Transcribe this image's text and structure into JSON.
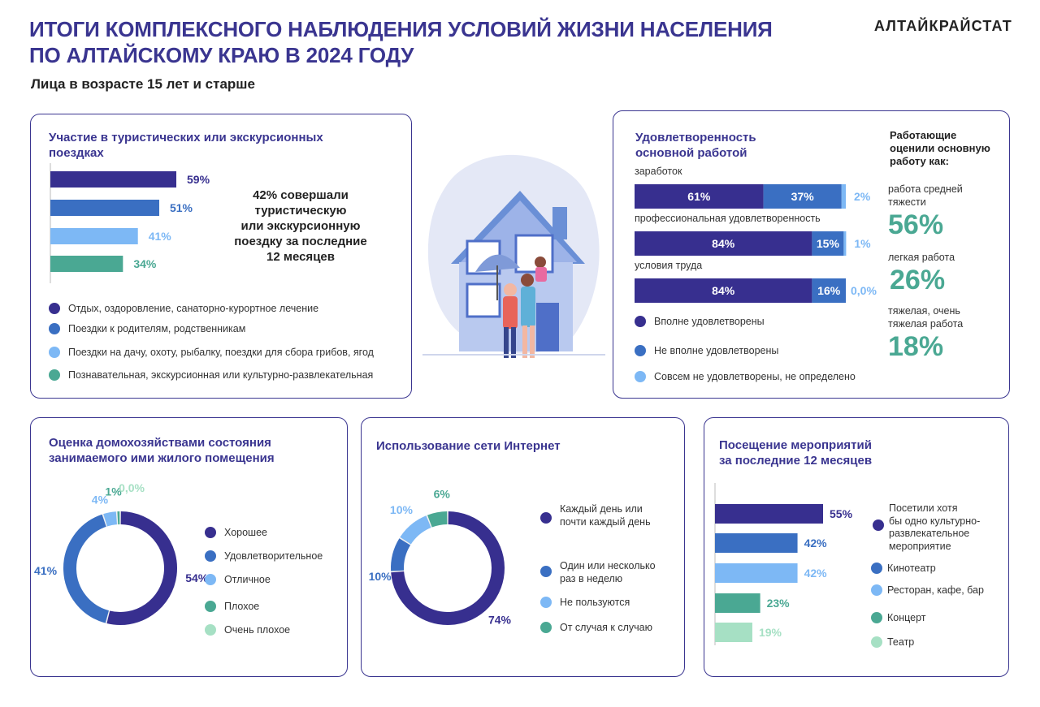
{
  "header": {
    "title_line1": "ИТОГИ КОМПЛЕКСНОГО НАБЛЮДЕНИЯ УСЛОВИЙ ЖИЗНИ НАСЕЛЕНИЯ",
    "title_line2": "ПО АЛТАЙСКОМУ КРАЮ В 2024 ГОДУ",
    "organization": "АЛТАЙКРАЙСТАТ",
    "subtitle": "Лица в возрасте 15 лет и старше"
  },
  "colors": {
    "dark": "#372f8f",
    "mid": "#3a6fc2",
    "light": "#7db8f5",
    "teal": "#4aa893",
    "mint": "#a6e0c4",
    "title": "#3a3590",
    "green_text": "#4aa893"
  },
  "tourism": {
    "title_line1": "Участие в туристических или экскурсионных",
    "title_line2": "поездках",
    "note_l1": "42% совершали",
    "note_l2": "туристическую",
    "note_l3": "или экскурсионную",
    "note_l4": "поездку за последние",
    "note_l5": "12 месяцев",
    "legend": [
      "Отдых, оздоровление, санаторно-курортное лечение",
      "Поездки к родителям, родственникам",
      "Поездки на дачу, охоту, рыбалку, поездки для сбора грибов, ягод",
      "Познавательная, экскурсионная или культурно-развлекательная"
    ]
  },
  "satisfaction": {
    "title_line1": "Удовлетворенность",
    "title_line2": "основной работой",
    "legend": [
      "Вполне удовлетворены",
      "Не вполне удовлетворены",
      "Совсем не удовлетворены, не определено"
    ],
    "side_title_l1": "Работающие",
    "side_title_l2": "оценили основную",
    "side_title_l3": "работу как:",
    "side_items": [
      {
        "label_l1": "работа средней",
        "label_l2": "тяжести",
        "value": "56%"
      },
      {
        "label_l1": "легкая работа",
        "label_l2": "",
        "value": "26%"
      },
      {
        "label_l1": "тяжелая, очень",
        "label_l2": "тяжелая работа",
        "value": "18%"
      }
    ]
  },
  "housing": {
    "title_line1": "Оценка домохозяйствами состояния",
    "title_line2": "занимаемого ими  жилого помещения",
    "legend": [
      "Хорошее",
      "Удовлетворительное",
      "Отличное",
      "Плохое",
      "Очень плохое"
    ]
  },
  "internet": {
    "title": "Использование сети Интернет",
    "legend": [
      {
        "l1": "Каждый день или",
        "l2": "почти каждый день"
      },
      {
        "l1": "Один или несколько",
        "l2": "раз в неделю"
      },
      {
        "l1": "Не пользуются",
        "l2": ""
      },
      {
        "l1": "От случая к случаю",
        "l2": ""
      }
    ]
  },
  "events": {
    "title_line1": "Посещение мероприятий",
    "title_line2": "за последние 12 месяцев",
    "legend": [
      {
        "l1": "Посетили хотя",
        "l2": "бы одно культурно-",
        "l3": "развлекательное",
        "l4": "мероприятие"
      },
      {
        "l1": "Кинотеатр",
        "l2": "",
        "l3": "",
        "l4": ""
      },
      {
        "l1": "Ресторан, кафе, бар",
        "l2": "",
        "l3": "",
        "l4": ""
      },
      {
        "l1": "Концерт",
        "l2": "",
        "l3": "",
        "l4": ""
      },
      {
        "l1": "Театр",
        "l2": "",
        "l3": "",
        "l4": ""
      }
    ]
  },
  "chart_data": [
    {
      "id": "tourism",
      "type": "bar",
      "orientation": "horizontal",
      "title": "Участие в туристических или экскурсионных поездках",
      "categories": [
        "Отдых, оздоровление, санаторно-курортное лечение",
        "Поездки к родителям, родственникам",
        "Поездки на дачу, охоту, рыбалку, поездки для сбора грибов, ягод",
        "Познавательная, экскурсионная или культурно-развлекательная"
      ],
      "values": [
        59,
        51,
        41,
        34
      ],
      "labels": [
        "59%",
        "51%",
        "41%",
        "34%"
      ],
      "colors": [
        "#372f8f",
        "#3a6fc2",
        "#7db8f5",
        "#4aa893"
      ],
      "xlim": [
        0,
        100
      ]
    },
    {
      "id": "satisfaction",
      "type": "bar",
      "orientation": "horizontal",
      "stacked": true,
      "title": "Удовлетворенность основной работой",
      "categories": [
        "заработок",
        "профессиональная удовлетворенность",
        "условия труда"
      ],
      "series": [
        {
          "name": "Вполне удовлетворены",
          "values": [
            61,
            84,
            84
          ],
          "labels": [
            "61%",
            "84%",
            "84%"
          ],
          "color": "#372f8f"
        },
        {
          "name": "Не вполне удовлетворены",
          "values": [
            37,
            15,
            16
          ],
          "labels": [
            "37%",
            "15%",
            "16%"
          ],
          "color": "#3a6fc2"
        },
        {
          "name": "Совсем не удовлетворены, не определено",
          "values": [
            2,
            1,
            0
          ],
          "labels": [
            "2%",
            "1%",
            "0,0%"
          ],
          "color": "#7db8f5"
        }
      ]
    },
    {
      "id": "housing",
      "type": "pie",
      "donut": true,
      "title": "Оценка домохозяйствами состояния занимаемого ими  жилого помещения",
      "categories": [
        "Хорошее",
        "Удовлетворительное",
        "Отличное",
        "Плохое",
        "Очень плохое"
      ],
      "values": [
        54,
        41,
        4,
        1,
        0
      ],
      "labels": [
        "54%",
        "41%",
        "4%",
        "1%",
        "0,0%"
      ],
      "colors": [
        "#372f8f",
        "#3a6fc2",
        "#7db8f5",
        "#4aa893",
        "#a6e0c4"
      ]
    },
    {
      "id": "internet",
      "type": "pie",
      "donut": true,
      "title": "Использование сети Интернет",
      "categories": [
        "Каждый день или почти каждый день",
        "Один или несколько раз в неделю",
        "Не пользуются",
        "От случая к случаю"
      ],
      "values": [
        74,
        10,
        10,
        6
      ],
      "labels": [
        "74%",
        "10%",
        "10%",
        "6%"
      ],
      "colors": [
        "#372f8f",
        "#3a6fc2",
        "#7db8f5",
        "#4aa893"
      ]
    },
    {
      "id": "events",
      "type": "bar",
      "orientation": "horizontal",
      "title": "Посещение мероприятий за последние 12 месяцев",
      "categories": [
        "Посетили хотя бы одно культурно-развлекательное мероприятие",
        "Кинотеатр",
        "Ресторан, кафе, бар",
        "Концерт",
        "Театр"
      ],
      "values": [
        55,
        42,
        42,
        23,
        19
      ],
      "labels": [
        "55%",
        "42%",
        "42%",
        "23%",
        "19%"
      ],
      "colors": [
        "#372f8f",
        "#3a6fc2",
        "#7db8f5",
        "#4aa893",
        "#a6e0c4"
      ],
      "xlim": [
        0,
        100
      ]
    }
  ]
}
